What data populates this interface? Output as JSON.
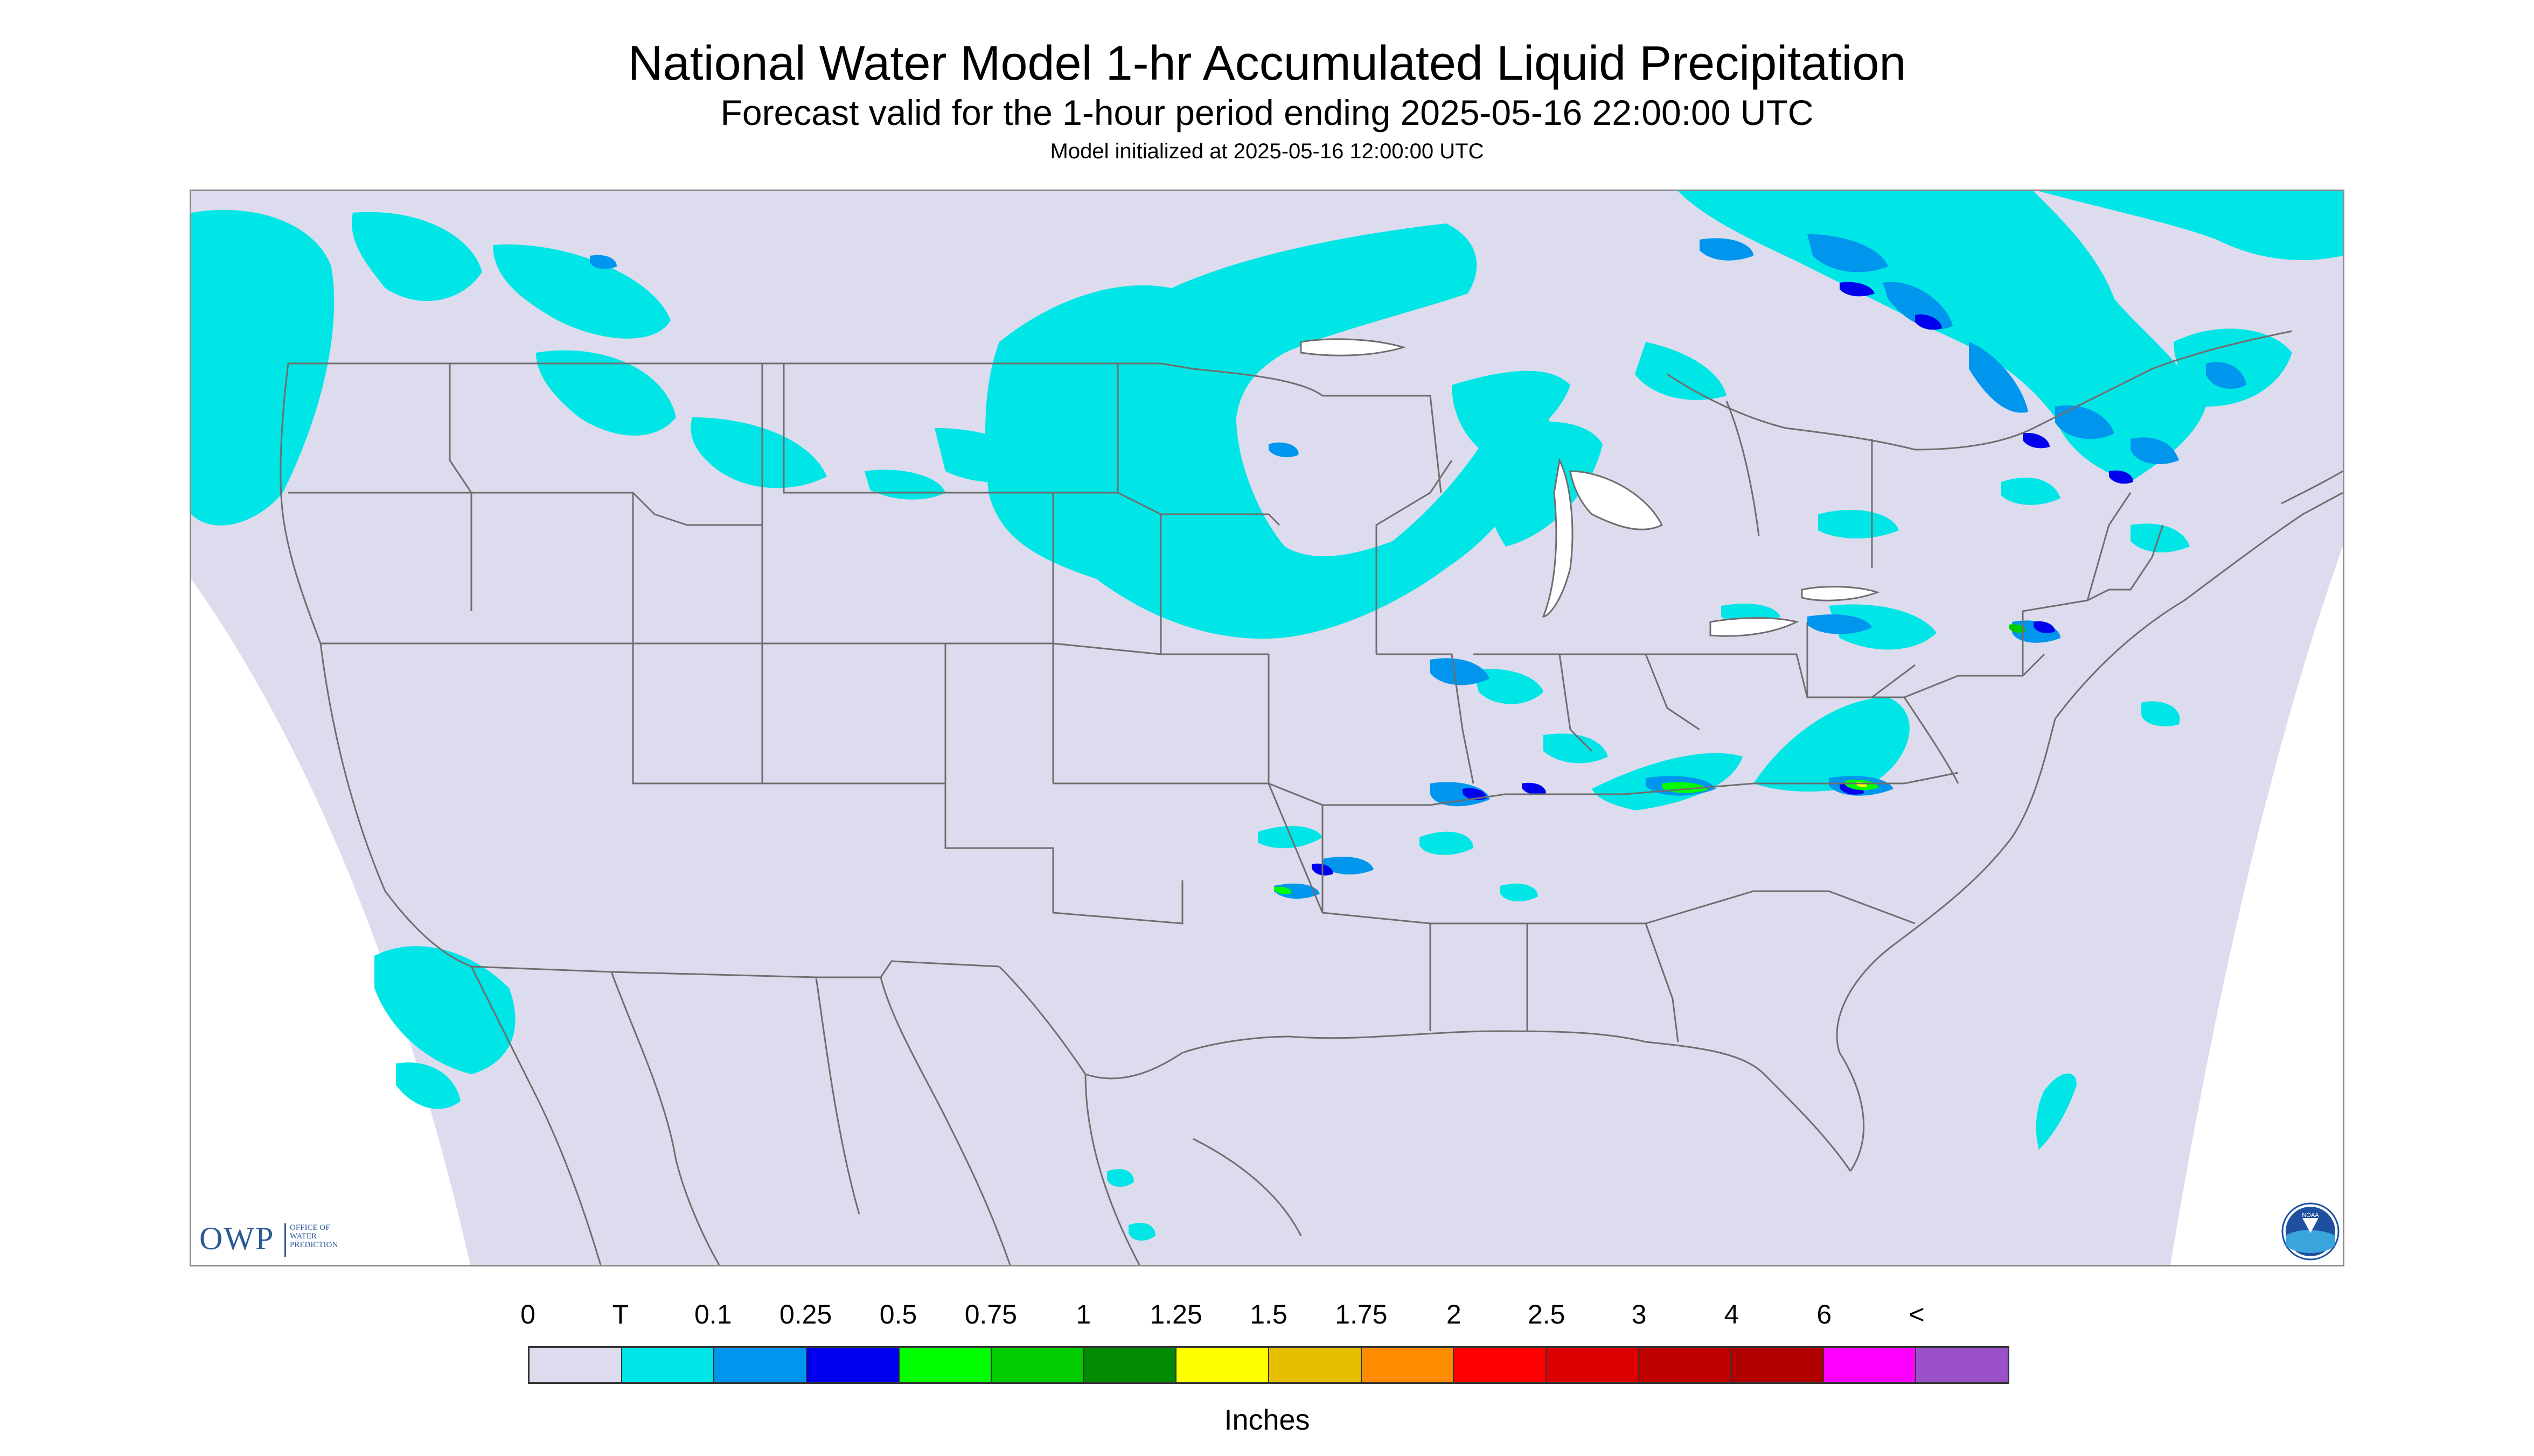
{
  "header": {
    "title": "National Water Model 1-hr Accumulated Liquid Precipitation",
    "subtitle": "Forecast valid for the 1-hour period ending 2025-05-16 22:00:00 UTC",
    "init": "Model initialized at 2025-05-16 12:00:00 UTC"
  },
  "map": {
    "region": "CONUS",
    "background_color": "#dcdcee",
    "border_color": "#6e6e6e"
  },
  "logos": {
    "owp_text": "OWP",
    "owp_sub": "OFFICE OF WATER PREDICTION",
    "noaa_text": "NOAA"
  },
  "legend": {
    "labels": [
      "0",
      "T",
      "0.1",
      "0.25",
      "0.5",
      "0.75",
      "1",
      "1.25",
      "1.5",
      "1.75",
      "2",
      "2.5",
      "3",
      "4",
      "6",
      "<"
    ],
    "colors": [
      "#dcdcee",
      "#00e5e5",
      "#0096ee",
      "#0000ee",
      "#00ff00",
      "#00cd00",
      "#008b00",
      "#ffff00",
      "#e5bf00",
      "#ff8c00",
      "#ff0000",
      "#dd0000",
      "#c10000",
      "#b20000",
      "#ff00ff",
      "#9a50c8"
    ],
    "units": "Inches"
  }
}
